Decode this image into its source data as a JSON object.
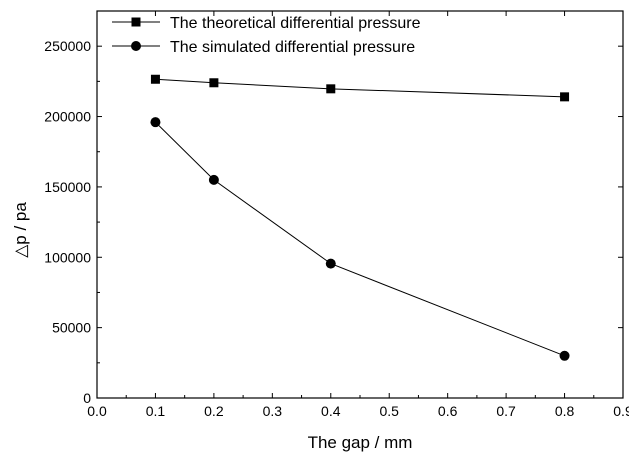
{
  "chart_data": {
    "type": "line",
    "xlabel": "The gap / mm",
    "ylabel": "△p / pa",
    "xlim": [
      0.0,
      0.9
    ],
    "ylim": [
      0,
      275000
    ],
    "xticks": [
      0.0,
      0.1,
      0.2,
      0.3,
      0.4,
      0.5,
      0.6,
      0.7,
      0.8,
      0.9
    ],
    "xtick_labels": [
      "0.0",
      "0.1",
      "0.2",
      "0.3",
      "0.4",
      "0.5",
      "0.6",
      "0.7",
      "0.8",
      "0.9"
    ],
    "yticks": [
      0,
      50000,
      100000,
      150000,
      200000,
      250000
    ],
    "ytick_labels": [
      "0",
      "50000",
      "100000",
      "150000",
      "200000",
      "250000"
    ],
    "grid": false,
    "legend_position": "top-left",
    "x": [
      0.1,
      0.2,
      0.4,
      0.8
    ],
    "series": [
      {
        "name": "The theoretical differential pressure",
        "marker": "square",
        "values": [
          226500,
          224000,
          219700,
          214000
        ]
      },
      {
        "name": "The simulated differential pressure",
        "marker": "circle",
        "values": [
          196000,
          155000,
          95500,
          30000
        ]
      }
    ],
    "colors": {
      "line": "#000000",
      "marker": "#000000",
      "background": "#ffffff"
    }
  }
}
